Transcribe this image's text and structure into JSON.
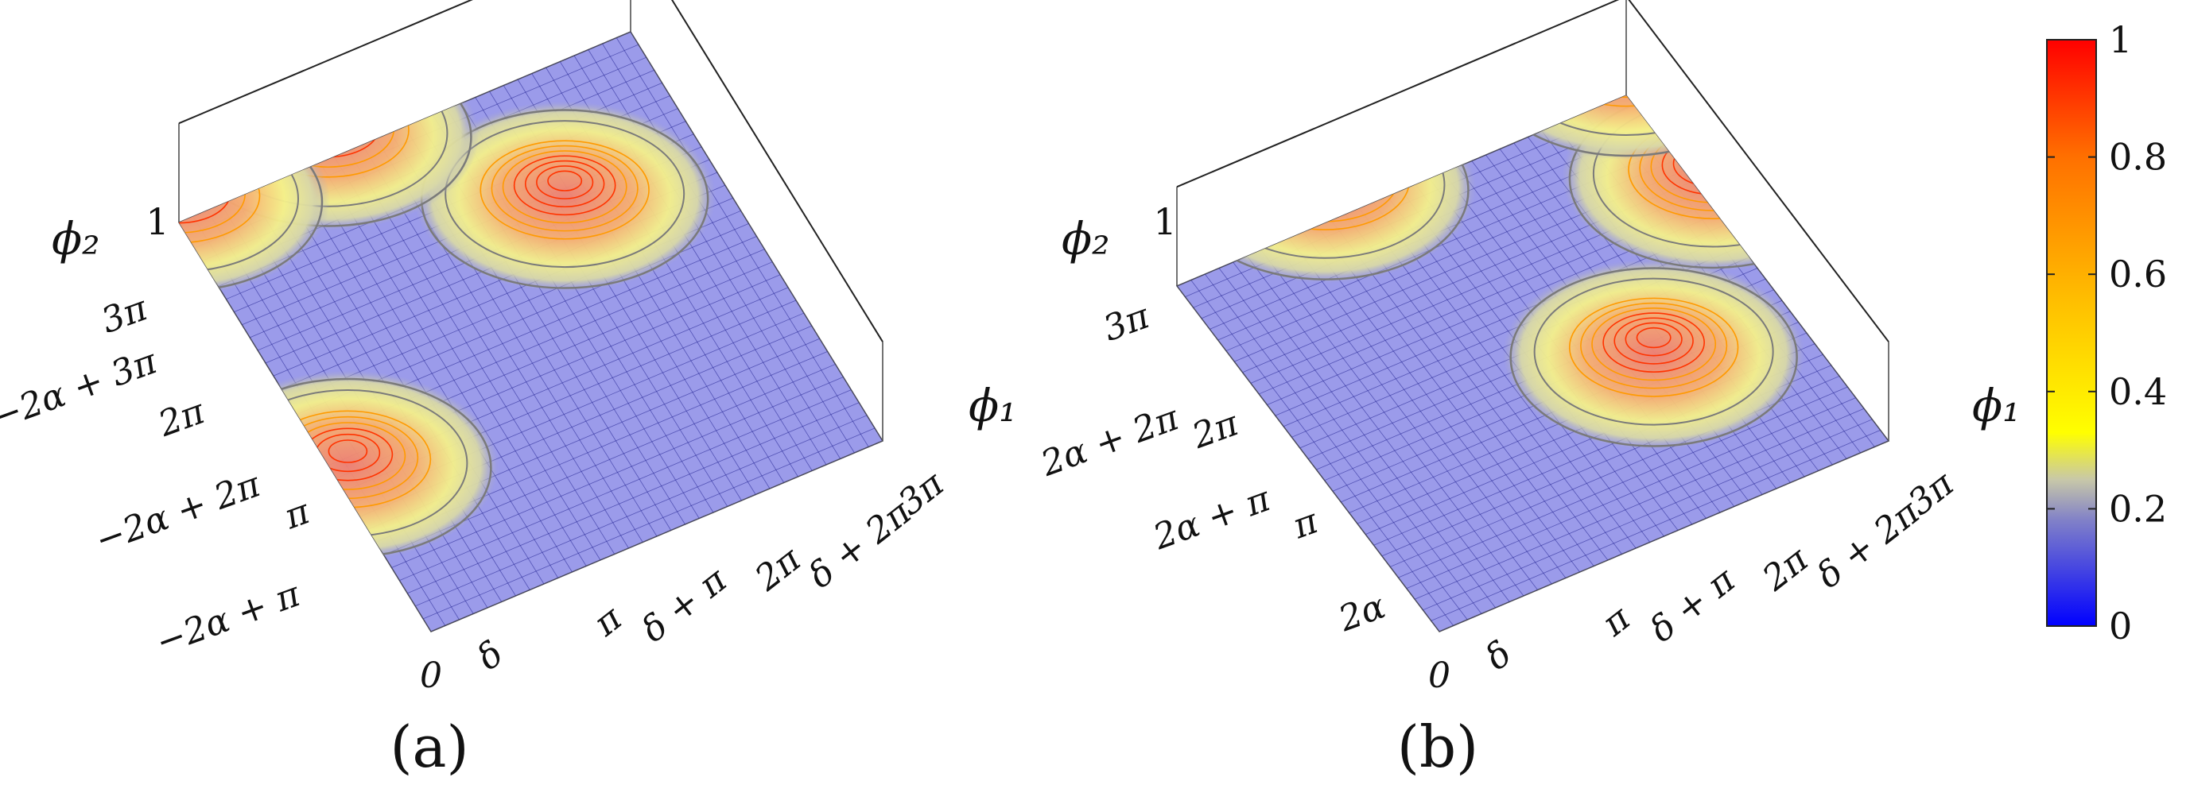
{
  "colors": {
    "colormap": [
      "#0000ff",
      "#7f7fd0",
      "#c8c8a0",
      "#ffff00",
      "#ffc000",
      "#ff8000",
      "#ff0000"
    ],
    "contour_outer": "#7a7a7a",
    "contour_inner": "#ff3300",
    "mesh_line": "#1a1a8c",
    "box_line": "#222222"
  },
  "colorbar": {
    "min": 0,
    "max": 1,
    "ticks": [
      "0",
      "0.2",
      "0.4",
      "0.6",
      "0.8",
      "1"
    ]
  },
  "chart_data": [
    {
      "type": "surface",
      "panel_label": "(a)",
      "zlabel": "ϕ₂",
      "xlabel": "ϕ₁",
      "z_max_label": "1",
      "z_range": [
        0,
        1
      ],
      "x_ticks": [
        "0",
        "δ",
        "π",
        "δ + π",
        "2π",
        "δ + 2π",
        "3π"
      ],
      "y_ticks": [
        "0",
        "−2α + π",
        "π",
        "−2α + 2π",
        "2π",
        "−2α + 3π",
        "3π"
      ],
      "peaks": [
        {
          "x": "2π",
          "y": "2π",
          "height": 0.75
        },
        {
          "x": "0",
          "y": "π",
          "height": 0.7
        },
        {
          "x": "π",
          "y": "3π",
          "height": 0.55
        },
        {
          "x": "0",
          "y": "3π",
          "height": 0.5
        }
      ]
    },
    {
      "type": "surface",
      "panel_label": "(b)",
      "zlabel": "ϕ₂",
      "xlabel": "ϕ₁",
      "z_max_label": "1",
      "z_range": [
        0,
        1
      ],
      "x_ticks": [
        "0",
        "δ",
        "π",
        "δ + π",
        "2π",
        "δ + 2π",
        "3π"
      ],
      "y_ticks": [
        "0",
        "2α",
        "π",
        "2α + π",
        "2π",
        "2α + 2π",
        "3π"
      ],
      "peaks": [
        {
          "x": "2π",
          "y": "π",
          "height": 0.8
        },
        {
          "x": "π",
          "y": "3π",
          "height": 0.8
        },
        {
          "x": "3π",
          "y": "2π",
          "height": 0.75
        },
        {
          "x": "3π",
          "y": "3π",
          "height": 0.7
        }
      ]
    }
  ]
}
